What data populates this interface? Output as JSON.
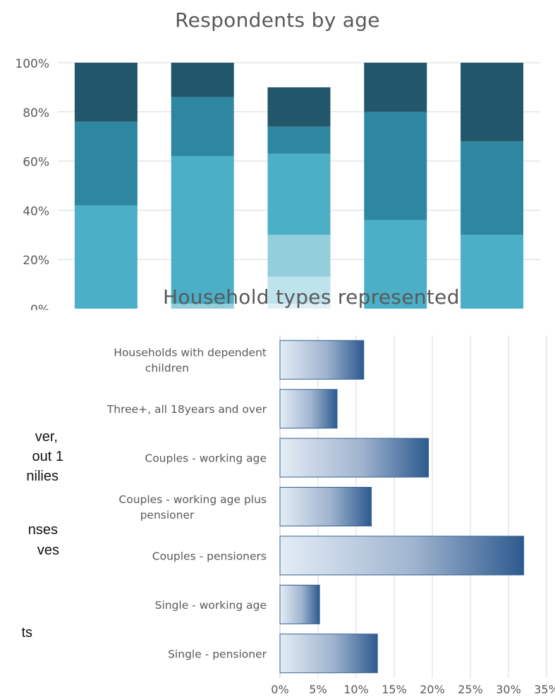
{
  "body_text_fragments": [
    "ver,",
    "out 1",
    "nilies",
    "nses",
    "ves",
    "ts"
  ],
  "chart_data": [
    {
      "type": "bar",
      "stacked": true,
      "title": "Respondents by age",
      "categories": [
        "",
        "",
        "",
        "",
        ""
      ],
      "y_tick_labels": [
        "0%",
        "20%",
        "40%",
        "60%",
        "80%",
        "100%"
      ],
      "ylim": [
        0,
        100
      ],
      "grid": true,
      "legend": "none",
      "colors": [
        "#def0f5",
        "#bfe3ec",
        "#93cedc",
        "#4aafc7",
        "#2e87a0",
        "#22566a"
      ],
      "series": [
        {
          "values": [
            0,
            0,
            2,
            0,
            0
          ]
        },
        {
          "values": [
            0,
            0,
            11,
            0,
            0
          ]
        },
        {
          "values": [
            0,
            2,
            17,
            0,
            0
          ]
        },
        {
          "values": [
            42,
            60,
            33,
            36,
            30
          ]
        },
        {
          "values": [
            34,
            24,
            11,
            44,
            38
          ]
        },
        {
          "values": [
            24,
            14,
            16,
            20,
            32
          ]
        }
      ]
    },
    {
      "type": "bar",
      "orientation": "horizontal",
      "title": "Household types represented",
      "categories": [
        "Households with dependent children",
        "Three+, all 18years and over",
        "Couples - working age",
        "Couples - working age plus pensioner",
        "Couples - pensioners",
        "Single - working age",
        "Single - pensioner"
      ],
      "category_label_lines": [
        [
          "Households with dependent",
          "children"
        ],
        [
          "Three+, all 18years and over"
        ],
        [
          "Couples - working age"
        ],
        [
          "Couples - working age plus",
          "pensioner"
        ],
        [
          "Couples - pensioners"
        ],
        [
          "Single - working age"
        ],
        [
          "Single - pensioner"
        ]
      ],
      "values": [
        11,
        7.5,
        19.5,
        12,
        32,
        5.2,
        12.8
      ],
      "x_tick_labels": [
        "0%",
        "5%",
        "10%",
        "15%",
        "20%",
        "25%",
        "30%",
        "35%"
      ],
      "xlim": [
        0,
        35
      ],
      "grid": true,
      "legend": "none",
      "bar_gradient": [
        "#e4edf6",
        "#9fb4cf",
        "#2d5a8f"
      ],
      "bar_border": "#35608f"
    }
  ]
}
